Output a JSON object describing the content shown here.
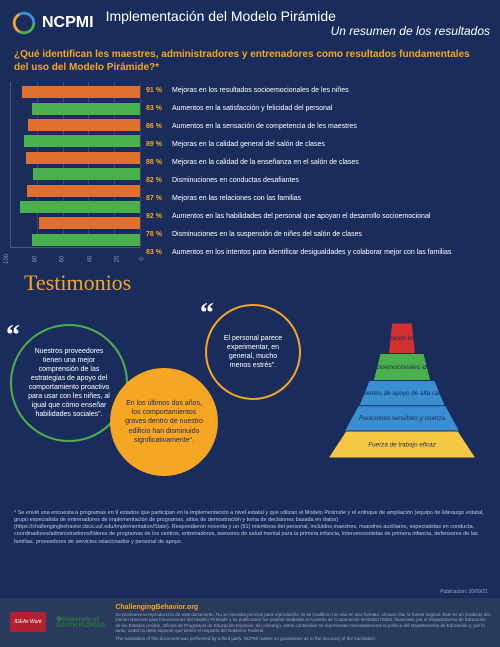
{
  "header": {
    "logo_text": "NCPMI",
    "title": "Implementación del Modelo Pirámide",
    "subtitle": "Un resumen de los resultados"
  },
  "question": "¿Qué identifican les maestres, administradores y entrenadores como resultados fundamentales del uso del Modelo Pirámide?*",
  "chart": {
    "type": "bar",
    "xlim": [
      0,
      100
    ],
    "xticks": [
      "100",
      "80",
      "60",
      "40",
      "20",
      "0"
    ],
    "bar_colors": [
      "#e07030",
      "#4bb04b",
      "#e07030",
      "#4bb04b",
      "#e07030",
      "#4bb04b",
      "#e07030",
      "#4bb04b",
      "#e07030",
      "#4bb04b"
    ],
    "results": [
      {
        "pct": "91 %",
        "label": "Mejoras en los resultados socioemocionales de les niñes"
      },
      {
        "pct": "83 %",
        "label": "Aumentos en la satisfacción y felicidad del personal"
      },
      {
        "pct": "86 %",
        "label": "Aumentos en la sensación de competencia de les maestres"
      },
      {
        "pct": "89 %",
        "label": "Mejoras en la calidad general del salón de clases"
      },
      {
        "pct": "88 %",
        "label": "Mejoras en la calidad de la enseñanza en el salón de clases"
      },
      {
        "pct": "82 %",
        "label": "Disminuciones en conductas desafiantes"
      },
      {
        "pct": "87 %",
        "label": "Mejoras en las relaciones con las familias"
      },
      {
        "pct": "92 %",
        "label": "Aumentos en las habilidades del personal que apoyan el desarrollo socioemocional"
      },
      {
        "pct": "78 %",
        "label": "Disminuciones en la suspensión de niñes del salón de clases"
      },
      {
        "pct": "83 %",
        "label": "Aumentos en los intentos para identificar desigualdades y colaborar mejor con las familias"
      }
    ]
  },
  "testimonios": {
    "title": "Testimonios",
    "bubble1": "Nuestros proveedores tienen una mejor comprensión de las estrategias de apoyo del comportamiento proactivo para usar con les niñes, al igual que cómo enseñar habilidades sociales\".",
    "bubble2": "En los últimos dos años, los comportamientos graves dentro de nuestro edificio han disminuido significativamente\".",
    "bubble3": "El personal parece experimentar, en general, mucho menos estrés\"."
  },
  "pyramid": {
    "tiers": [
      {
        "label": "Intervención intensiva",
        "color": "#d03030"
      },
      {
        "label": "Apoyos socioemocionales identificados",
        "color": "#4bb04b"
      },
      {
        "label": "Ambientes de apoyo de alta calidad",
        "color": "#3a8fd0"
      },
      {
        "label": "Relaciones sensibles y crianza",
        "color": "#3a8fd0"
      },
      {
        "label": "Fuerza de trabajo eficaz",
        "color": "#f5c843"
      }
    ]
  },
  "footnote": "* Se envió una encuesta a programas en 9 estados que participan en la implementación a nivel estatal y que utilizan el Modelo Pirámide y el enfoque de ampliación (equipo de liderazgo estatal, grupo especialista de entrenadores de implementación de programas, sitios de demostración y toma de decisiones basada en datos) (https://challengingbehavior.cbcs.usf.edu/Implementation/State). Respondieron noventa y un (91) miembros del personal, incluidos maestres, maestres auxiliares, especialistas en conducta, coordinadores/administradores/líderes de programas de los centros, entrenadores, asesores de salud mental para la primera infancia, intervencionistas de primera infancia, defensores de las familias, proveedores de servicios relacionados y personal de apoyo.",
  "footer": {
    "logo1": "IDEAs Work",
    "logo2": "SOUTH FLORIDA",
    "site": "ChallengingBehavior.org",
    "pub_label": "Publicación: 20/09/21",
    "disclaimer": "Se promueve la reproducción de este documento. No se necesita permiso para reproducirlo. Si se modifica o se usa en otro formato, sírvase citar la fuente original. Este es un producto del Centro Nacional para Innovaciones del Modelo Pirámide y su publicación fue posible mediante el Acuerdo de Cooperación #H326B170003, financiado por el Departamento de Educación de los Estados Unidos, Oficina de Programas de Educación Especial. Sin embargo, estos contenidos no representan necesariamente la política del Departamento de Educación y, por lo tanto, usted no debe suponer que tienen el respaldo del Gobierno Federal.",
    "translation": "The translation of this document was performed by a third party. NCPMI makes no guarantees as to the accuracy of the translation."
  }
}
